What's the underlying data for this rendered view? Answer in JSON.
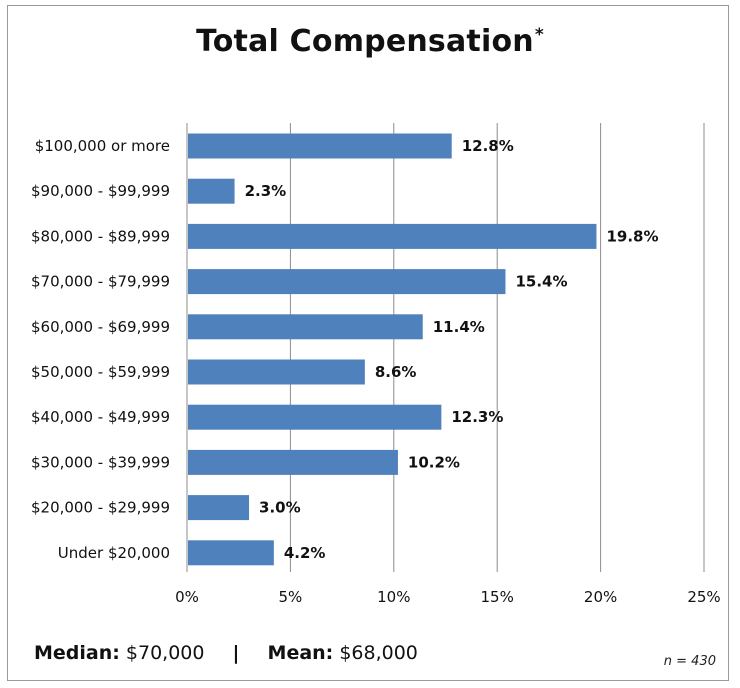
{
  "title": "Total Compensation",
  "title_mark": "*",
  "chart_data": {
    "type": "bar",
    "orientation": "horizontal",
    "categories": [
      "$100,000 or more",
      "$90,000 - $99,999",
      "$80,000 - $89,999",
      "$70,000 - $79,999",
      "$60,000 - $69,999",
      "$50,000 - $59,999",
      "$40,000 - $49,999",
      "$30,000 - $39,999",
      "$20,000 - $29,999",
      "Under $20,000"
    ],
    "values": [
      12.8,
      2.3,
      19.8,
      15.4,
      11.4,
      8.6,
      12.3,
      10.2,
      3.0,
      4.2
    ],
    "value_labels": [
      "12.8%",
      "2.3%",
      "19.8%",
      "15.4%",
      "11.4%",
      "8.6%",
      "12.3%",
      "10.2%",
      "3.0%",
      "4.2%"
    ],
    "xlim": [
      0,
      25
    ],
    "x_ticks": [
      "0%",
      "5%",
      "10%",
      "15%",
      "20%",
      "25%"
    ],
    "grid": "vertical",
    "bar_color": "#4f81bd"
  },
  "footer": {
    "median_label": "Median:",
    "median_value": "$70,000",
    "separator": "|",
    "mean_label": "Mean:",
    "mean_value": "$68,000",
    "n_note": "n = 430"
  }
}
